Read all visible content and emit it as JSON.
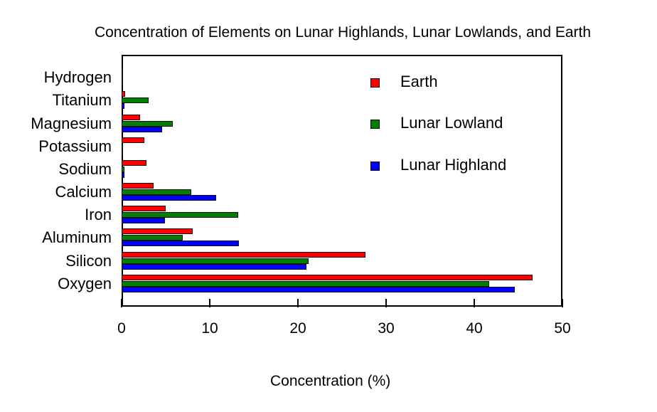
{
  "chart_data": {
    "type": "bar",
    "orientation": "horizontal",
    "title": "Concentration of Elements on Lunar Highlands, Lunar Lowlands, and Earth",
    "xlabel": "Concentration (%)",
    "ylabel": "",
    "xlim": [
      0,
      50
    ],
    "xticks": [
      0,
      10,
      20,
      30,
      40,
      50
    ],
    "grid": false,
    "legend_position": "upper right inside",
    "categories": [
      "Hydrogen",
      "Titanium",
      "Magnesium",
      "Potassium",
      "Sodium",
      "Calcium",
      "Iron",
      "Aluminum",
      "Silicon",
      "Oxygen"
    ],
    "series": [
      {
        "name": "Earth",
        "color": "#ff0000",
        "values": [
          0.1,
          0.4,
          2.1,
          2.6,
          2.8,
          3.6,
          5.0,
          8.1,
          27.7,
          46.6
        ]
      },
      {
        "name": "Lunar Lowland",
        "color": "#008000",
        "values": [
          0.1,
          3.1,
          5.8,
          0.1,
          0.3,
          7.9,
          13.2,
          6.9,
          21.2,
          41.7
        ]
      },
      {
        "name": "Lunar Highland",
        "color": "#0000ff",
        "values": [
          0.05,
          0.3,
          4.6,
          0.1,
          0.3,
          10.7,
          4.9,
          13.3,
          21.0,
          44.6
        ]
      }
    ]
  }
}
